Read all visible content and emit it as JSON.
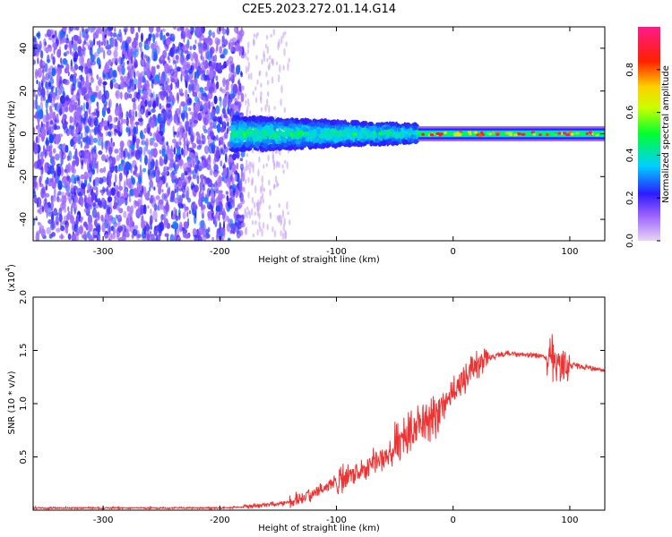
{
  "figure": {
    "title": "C2E5.2023.272.01.14.G14"
  },
  "chart_data": [
    {
      "type": "heatmap",
      "xlabel": "Height of straight line (km)",
      "ylabel": "Frequency (Hz)",
      "xlim": [
        -360,
        130
      ],
      "ylim": [
        -50,
        50
      ],
      "xticks": [
        -300,
        -200,
        -100,
        0,
        100
      ],
      "xtick_labels": [
        "-300",
        "-200",
        "-100",
        "0",
        "100"
      ],
      "yticks": [
        -40,
        -20,
        0,
        20,
        40
      ],
      "ytick_labels": [
        "-40",
        "-20",
        "0",
        "20",
        "40"
      ],
      "colorbar": {
        "label": "Normalized spectral amplitude",
        "range": [
          0,
          1
        ],
        "ticks": [
          0,
          0.2,
          0.4,
          0.6,
          0.8
        ],
        "tick_labels": [
          "0.0",
          "0.2",
          "0.4",
          "0.6",
          "0.8"
        ]
      },
      "description_regions": [
        {
          "x_range": [
            -360,
            -180
          ],
          "freq_range": [
            -50,
            50
          ],
          "amplitude": [
            0.1,
            0.25
          ],
          "pattern": "scattered noise"
        },
        {
          "x_range": [
            -190,
            -30
          ],
          "freq_range": [
            -8,
            8
          ],
          "amplitude": [
            0.2,
            0.5
          ],
          "pattern": "signal band"
        },
        {
          "x_range": [
            -30,
            130
          ],
          "freq_range": [
            -3,
            3
          ],
          "amplitude": [
            0.45,
            0.95
          ],
          "pattern": "narrow carrier"
        }
      ]
    },
    {
      "type": "line",
      "xlabel": "Height of straight line (km)",
      "ylabel": "SNR (10 * v/v)",
      "y_multiplier_label": "(x10",
      "y_multiplier_exp": "4",
      "y_multiplier_close": ")",
      "xlim": [
        -360,
        130
      ],
      "ylim": [
        0,
        2.0
      ],
      "xticks": [
        -300,
        -200,
        -100,
        0,
        100
      ],
      "xtick_labels": [
        "-300",
        "-200",
        "-100",
        "0",
        "100"
      ],
      "yticks": [
        0.5,
        1.0,
        1.5,
        2.0
      ],
      "ytick_labels": [
        "0.5",
        "1.0",
        "1.5",
        "2.0"
      ],
      "series": [
        {
          "name": "SNR",
          "color": "#ee3333",
          "x": [
            -360,
            -300,
            -250,
            -200,
            -180,
            -170,
            -160,
            -150,
            -140,
            -130,
            -120,
            -110,
            -100,
            -90,
            -80,
            -70,
            -60,
            -50,
            -40,
            -30,
            -20,
            -10,
            0,
            10,
            20,
            30,
            40,
            50,
            60,
            70,
            80,
            85,
            90,
            95,
            100,
            110,
            120,
            130
          ],
          "y": [
            0.02,
            0.02,
            0.02,
            0.02,
            0.03,
            0.04,
            0.05,
            0.06,
            0.08,
            0.12,
            0.16,
            0.21,
            0.27,
            0.32,
            0.38,
            0.44,
            0.5,
            0.57,
            0.66,
            0.76,
            0.86,
            0.97,
            1.1,
            1.24,
            1.36,
            1.43,
            1.46,
            1.47,
            1.46,
            1.45,
            1.44,
            1.42,
            1.38,
            1.35,
            1.36,
            1.35,
            1.33,
            1.3
          ]
        }
      ]
    }
  ]
}
